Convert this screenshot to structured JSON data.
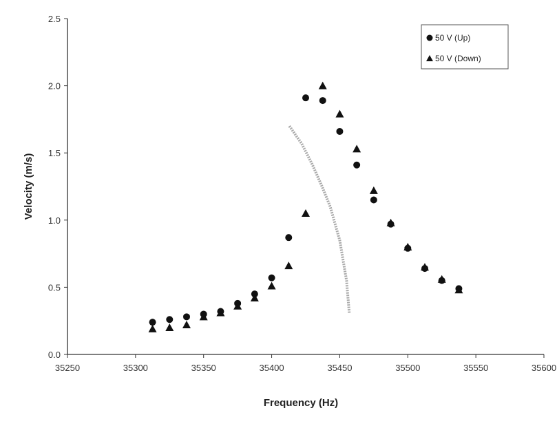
{
  "chart_data": {
    "type": "scatter",
    "xlabel": "Frequency (Hz)",
    "ylabel": "Velocity (m/s)",
    "xlim": [
      35250,
      35600
    ],
    "ylim": [
      0,
      2.5
    ],
    "xticks": [
      35250,
      35300,
      35350,
      35400,
      35450,
      35500,
      35550,
      35600
    ],
    "yticks": [
      "0.0",
      "0.5",
      "1.0",
      "1.5",
      "2.0",
      "2.5"
    ],
    "grid": false,
    "legend_position": "top-right",
    "x": [
      35312.5,
      35325,
      35337.5,
      35350,
      35362.5,
      35375,
      35387.5,
      35400,
      35412.5,
      35425,
      35437.5,
      35450,
      35462.5,
      35475,
      35487.5,
      35500,
      35512.5,
      35525,
      35537.5
    ],
    "series": [
      {
        "name": "50 V (Up)",
        "marker": "circle",
        "color": "#111111",
        "values": [
          0.24,
          0.26,
          0.28,
          0.3,
          0.32,
          0.38,
          0.45,
          0.57,
          0.87,
          1.91,
          1.89,
          1.66,
          1.41,
          1.15,
          0.97,
          0.79,
          0.64,
          0.55,
          0.49
        ]
      },
      {
        "name": "50 V (Down)",
        "marker": "triangle",
        "color": "#111111",
        "values": [
          0.19,
          0.2,
          0.22,
          0.28,
          0.31,
          0.36,
          0.42,
          0.51,
          0.66,
          1.05,
          2.0,
          1.79,
          1.53,
          1.22,
          0.98,
          0.8,
          0.65,
          0.56,
          0.48
        ]
      }
    ],
    "curve": {
      "color": "#aaaaaa",
      "x": [
        35413,
        35422,
        35430,
        35437,
        35443,
        35450,
        35455,
        35457
      ],
      "y": [
        1.7,
        1.57,
        1.41,
        1.25,
        1.1,
        0.85,
        0.55,
        0.31
      ]
    }
  }
}
